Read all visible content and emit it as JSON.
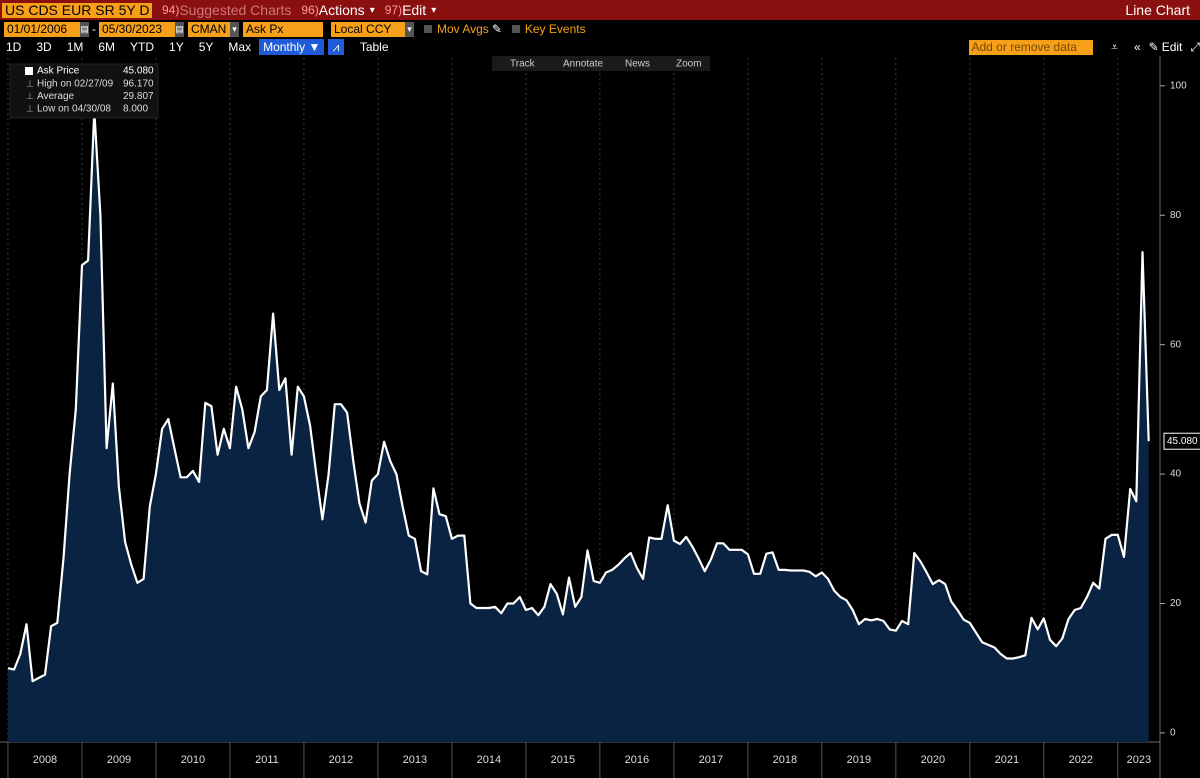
{
  "ui": {
    "security": "US CDS EUR SR 5Y D",
    "menus": [
      {
        "num": "94)",
        "label": "Suggested Charts"
      },
      {
        "num": "96)",
        "label": "Actions"
      },
      {
        "num": "97)",
        "label": "Edit"
      }
    ],
    "chart_kind": "Line Chart",
    "start_date": "01/01/2006",
    "date_separator": "-",
    "end_date": "05/30/2023",
    "source": "CMAN",
    "field": "Ask Px",
    "currency": "Local CCY",
    "mov_avgs": "Mov Avgs",
    "key_events": "Key Events",
    "periods": [
      "1D",
      "3D",
      "1M",
      "6M",
      "YTD",
      "1Y",
      "5Y",
      "Max"
    ],
    "frequency": "Monthly",
    "table": "Table",
    "add_data": "Add or remove data",
    "edit": "Edit",
    "tools": [
      "Track",
      "Annotate",
      "News",
      "Zoom"
    ]
  },
  "chart_data": {
    "type": "area",
    "x": [
      2008,
      2008.083,
      2008.167,
      2008.25,
      2008.333,
      2008.417,
      2008.5,
      2008.583,
      2008.667,
      2008.75,
      2008.833,
      2008.917,
      2009,
      2009.083,
      2009.167,
      2009.25,
      2009.333,
      2009.417,
      2009.5,
      2009.583,
      2009.667,
      2009.75,
      2009.833,
      2009.917,
      2010,
      2010.083,
      2010.167,
      2010.25,
      2010.333,
      2010.417,
      2010.5,
      2010.583,
      2010.667,
      2010.75,
      2010.833,
      2010.917,
      2011,
      2011.083,
      2011.167,
      2011.25,
      2011.333,
      2011.417,
      2011.5,
      2011.583,
      2011.667,
      2011.75,
      2011.833,
      2011.917,
      2012,
      2012.083,
      2012.167,
      2012.25,
      2012.333,
      2012.417,
      2012.5,
      2012.583,
      2012.667,
      2012.75,
      2012.833,
      2012.917,
      2013,
      2013.083,
      2013.167,
      2013.25,
      2013.333,
      2013.417,
      2013.5,
      2013.583,
      2013.667,
      2013.75,
      2013.833,
      2013.917,
      2014,
      2014.083,
      2014.167,
      2014.25,
      2014.333,
      2014.417,
      2014.5,
      2014.583,
      2014.667,
      2014.75,
      2014.833,
      2014.917,
      2015,
      2015.083,
      2015.167,
      2015.25,
      2015.333,
      2015.417,
      2015.5,
      2015.583,
      2015.667,
      2015.75,
      2015.833,
      2015.917,
      2016,
      2016.083,
      2016.167,
      2016.25,
      2016.333,
      2016.417,
      2016.5,
      2016.583,
      2016.667,
      2016.75,
      2016.833,
      2016.917,
      2017,
      2017.083,
      2017.167,
      2017.25,
      2017.333,
      2017.417,
      2017.5,
      2017.583,
      2017.667,
      2017.75,
      2017.833,
      2017.917,
      2018,
      2018.083,
      2018.167,
      2018.25,
      2018.333,
      2018.417,
      2018.5,
      2018.583,
      2018.667,
      2018.75,
      2018.833,
      2018.917,
      2019,
      2019.083,
      2019.167,
      2019.25,
      2019.333,
      2019.417,
      2019.5,
      2019.583,
      2019.667,
      2019.75,
      2019.833,
      2019.917,
      2020,
      2020.083,
      2020.167,
      2020.25,
      2020.333,
      2020.417,
      2020.5,
      2020.583,
      2020.667,
      2020.75,
      2020.833,
      2020.917,
      2021,
      2021.083,
      2021.167,
      2021.25,
      2021.333,
      2021.417,
      2021.5,
      2021.583,
      2021.667,
      2021.75,
      2021.833,
      2021.917,
      2022,
      2022.083,
      2022.167,
      2022.25,
      2022.333,
      2022.417,
      2022.5,
      2022.583,
      2022.667,
      2022.75,
      2022.833,
      2022.917,
      2023,
      2023.083,
      2023.167,
      2023.25,
      2023.333,
      2023.417
    ],
    "series": [
      {
        "name": "Ask Price",
        "color": "#ffffff",
        "fill": "#0b2342",
        "values": [
          10.0,
          9.8,
          12.2,
          16.8,
          8.0,
          8.5,
          9.0,
          16.5,
          17.0,
          27,
          40,
          50,
          72.3,
          73,
          96.17,
          80,
          44,
          54,
          38,
          29.5,
          26,
          23.2,
          23.8,
          35,
          40,
          47,
          48.5,
          44,
          39.5,
          39.5,
          40.5,
          38.8,
          51,
          50.5,
          43,
          47,
          44,
          53.5,
          50,
          44,
          46.5,
          52,
          53,
          64.8,
          53,
          54.8,
          43,
          53.5,
          52,
          47.5,
          40,
          33,
          40,
          50.8,
          50.8,
          49.5,
          42,
          35.5,
          32.5,
          39,
          40,
          45,
          42,
          40,
          35,
          30.5,
          30,
          25,
          24.5,
          37.8,
          33.8,
          33.5,
          30,
          30.5,
          30.5,
          20,
          19.3,
          19.3,
          19.3,
          19.5,
          18.5,
          20,
          20,
          21,
          19,
          19.3,
          18.2,
          19.5,
          23,
          21.5,
          18.3,
          24,
          19.5,
          21,
          28.2,
          23.5,
          23.2,
          24.8,
          25.2,
          26,
          27,
          27.8,
          25.5,
          23.8,
          30.2,
          30,
          30,
          35.2,
          29.7,
          29.2,
          30.3,
          28.8,
          27,
          25,
          26.8,
          29.3,
          29.3,
          28.3,
          28.3,
          28.3,
          27.6,
          24.6,
          24.6,
          27.7,
          27.9,
          25.2,
          25.2,
          25.1,
          25.1,
          25.1,
          24.9,
          24.2,
          24.8,
          23.8,
          22,
          21,
          20.5,
          19,
          16.8,
          17.6,
          17.4,
          17.6,
          17.3,
          16,
          15.8,
          17.3,
          16.8,
          27.8,
          26.5,
          24.8,
          23,
          23.6,
          23,
          20.3,
          19,
          17.5,
          17,
          15.5,
          14,
          13.6,
          13.2,
          12.2,
          11.5,
          11.5,
          11.7,
          12,
          17.8,
          16,
          17.7,
          14.4,
          13.4,
          14.6,
          17.6,
          19,
          19.3,
          21,
          23.2,
          22.3,
          30,
          30.6,
          30.6,
          27.2,
          37.7,
          35.8,
          74.3,
          45.08
        ]
      }
    ],
    "series_value_label": "45.080",
    "stats": [
      {
        "label": "High on 02/27/09",
        "value": "96.170"
      },
      {
        "label": "Average",
        "value": "29.807"
      },
      {
        "label": "Low on 04/30/08",
        "value": "8.000"
      }
    ],
    "xlim": [
      2007.96,
      2023.57
    ],
    "xticks": [
      2008,
      2009,
      2010,
      2011,
      2012,
      2013,
      2014,
      2015,
      2016,
      2017,
      2018,
      2019,
      2020,
      2021,
      2022,
      2023
    ],
    "ylim": [
      -1.4,
      104.3
    ],
    "yticks": [
      0,
      20,
      40,
      60,
      80,
      100
    ],
    "grid": true
  }
}
